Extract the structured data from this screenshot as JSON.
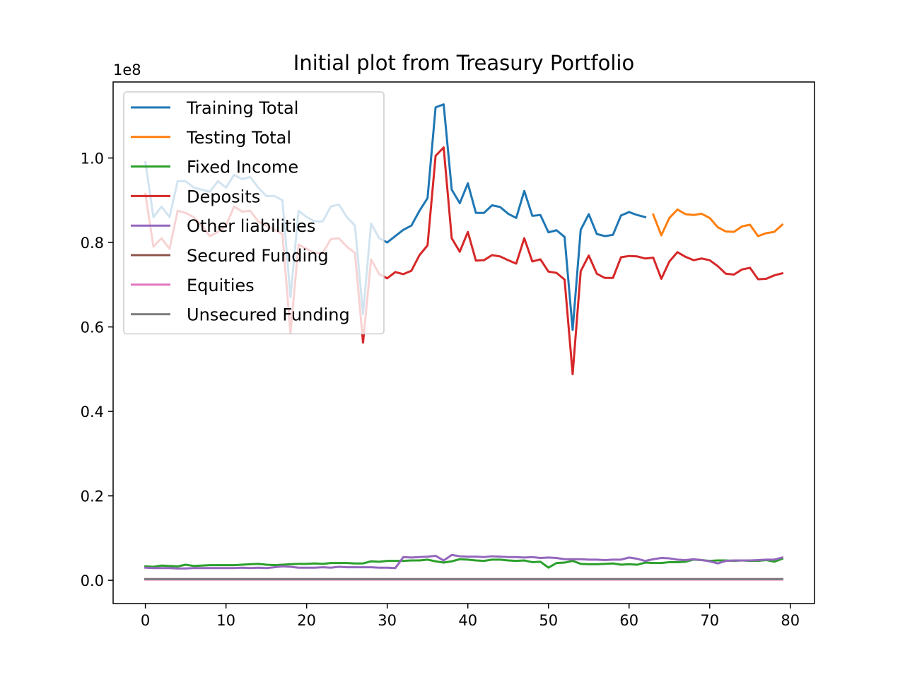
{
  "chart_data": {
    "type": "line",
    "title": "Initial plot from Treasury Portfolio",
    "xlabel": "",
    "ylabel": "",
    "y_offset_label": "1e8",
    "y_scale_factor": 100000000,
    "xlim": [
      -4,
      83
    ],
    "ylim": [
      -0.055,
      1.18
    ],
    "x_ticks": [
      0,
      10,
      20,
      30,
      40,
      50,
      60,
      70,
      80
    ],
    "y_ticks": [
      0.0,
      0.2,
      0.4,
      0.6,
      0.8,
      1.0
    ],
    "x_tick_labels": [
      "0",
      "10",
      "20",
      "30",
      "40",
      "50",
      "60",
      "70",
      "80"
    ],
    "y_tick_labels": [
      "0.0",
      "0.2",
      "0.4",
      "0.6",
      "0.8",
      "1.0"
    ],
    "grid": false,
    "legend_position": "top-left",
    "series": [
      {
        "name": "Training Total",
        "color": "#1f77b4",
        "x_start": 0,
        "values": [
          0.99,
          0.86,
          0.885,
          0.86,
          0.945,
          0.945,
          0.93,
          0.925,
          0.92,
          0.945,
          0.93,
          0.96,
          0.95,
          0.955,
          0.93,
          0.91,
          0.91,
          0.9,
          0.67,
          0.875,
          0.86,
          0.85,
          0.85,
          0.885,
          0.89,
          0.86,
          0.84,
          0.63,
          0.845,
          0.81,
          0.8,
          0.815,
          0.83,
          0.84,
          0.875,
          0.905,
          1.12,
          1.127,
          0.925,
          0.893,
          0.94,
          0.87,
          0.87,
          0.888,
          0.884,
          0.868,
          0.858,
          0.922,
          0.863,
          0.865,
          0.824,
          0.829,
          0.813,
          0.593,
          0.83,
          0.867,
          0.82,
          0.815,
          0.818,
          0.864,
          0.872,
          0.865,
          0.86
        ]
      },
      {
        "name": "Testing Total",
        "color": "#ff7f0e",
        "x_start": 63,
        "values": [
          0.866,
          0.817,
          0.858,
          0.878,
          0.867,
          0.865,
          0.868,
          0.858,
          0.836,
          0.826,
          0.825,
          0.838,
          0.842,
          0.815,
          0.822,
          0.825,
          0.842
        ]
      },
      {
        "name": "Fixed Income",
        "color": "#2ca02c",
        "x_start": 0,
        "values": [
          0.033,
          0.032,
          0.035,
          0.034,
          0.033,
          0.037,
          0.034,
          0.035,
          0.036,
          0.036,
          0.036,
          0.036,
          0.037,
          0.038,
          0.039,
          0.037,
          0.036,
          0.037,
          0.038,
          0.039,
          0.039,
          0.04,
          0.039,
          0.041,
          0.041,
          0.041,
          0.04,
          0.04,
          0.045,
          0.044,
          0.046,
          0.046,
          0.046,
          0.047,
          0.047,
          0.049,
          0.045,
          0.042,
          0.045,
          0.05,
          0.049,
          0.047,
          0.046,
          0.049,
          0.049,
          0.047,
          0.046,
          0.047,
          0.043,
          0.044,
          0.03,
          0.041,
          0.042,
          0.046,
          0.039,
          0.038,
          0.038,
          0.039,
          0.04,
          0.037,
          0.038,
          0.037,
          0.042,
          0.041,
          0.041,
          0.043,
          0.043,
          0.044,
          0.049,
          0.048,
          0.046,
          0.047,
          0.047,
          0.046,
          0.047,
          0.046,
          0.046,
          0.048,
          0.044,
          0.051
        ]
      },
      {
        "name": "Deposits",
        "color": "#d62728",
        "x_start": 0,
        "values": [
          0.915,
          0.79,
          0.81,
          0.785,
          0.875,
          0.87,
          0.86,
          0.84,
          0.815,
          0.825,
          0.84,
          0.885,
          0.873,
          0.875,
          0.85,
          0.84,
          0.83,
          0.82,
          0.585,
          0.795,
          0.785,
          0.775,
          0.775,
          0.808,
          0.81,
          0.79,
          0.775,
          0.563,
          0.76,
          0.725,
          0.715,
          0.73,
          0.725,
          0.733,
          0.77,
          0.793,
          1.005,
          1.025,
          0.81,
          0.778,
          0.825,
          0.757,
          0.758,
          0.77,
          0.767,
          0.758,
          0.75,
          0.81,
          0.755,
          0.76,
          0.731,
          0.728,
          0.712,
          0.488,
          0.732,
          0.769,
          0.726,
          0.716,
          0.716,
          0.765,
          0.768,
          0.767,
          0.762,
          0.764,
          0.714,
          0.755,
          0.777,
          0.766,
          0.758,
          0.762,
          0.758,
          0.744,
          0.726,
          0.724,
          0.736,
          0.74,
          0.713,
          0.714,
          0.722,
          0.727
        ]
      },
      {
        "name": "Other liabilities",
        "color": "#9467bd",
        "x_start": 0,
        "values": [
          0.03,
          0.029,
          0.029,
          0.029,
          0.028,
          0.028,
          0.029,
          0.029,
          0.029,
          0.029,
          0.029,
          0.029,
          0.03,
          0.029,
          0.03,
          0.029,
          0.031,
          0.033,
          0.032,
          0.03,
          0.03,
          0.03,
          0.031,
          0.03,
          0.032,
          0.031,
          0.031,
          0.031,
          0.031,
          0.03,
          0.03,
          0.029,
          0.055,
          0.054,
          0.055,
          0.056,
          0.058,
          0.047,
          0.06,
          0.057,
          0.056,
          0.056,
          0.055,
          0.057,
          0.056,
          0.055,
          0.055,
          0.054,
          0.055,
          0.053,
          0.054,
          0.053,
          0.05,
          0.05,
          0.05,
          0.049,
          0.049,
          0.048,
          0.049,
          0.049,
          0.054,
          0.051,
          0.046,
          0.05,
          0.053,
          0.052,
          0.049,
          0.048,
          0.05,
          0.048,
          0.045,
          0.04,
          0.046,
          0.047,
          0.047,
          0.047,
          0.048,
          0.049,
          0.049,
          0.054
        ]
      },
      {
        "name": "Secured Funding",
        "color": "#8c564b",
        "x_start": 0,
        "values": [
          0.003,
          0.003,
          0.003,
          0.003,
          0.003,
          0.003,
          0.003,
          0.003,
          0.003,
          0.003,
          0.003,
          0.003,
          0.003,
          0.003,
          0.003,
          0.003,
          0.003,
          0.003,
          0.003,
          0.003,
          0.003,
          0.003,
          0.003,
          0.003,
          0.003,
          0.003,
          0.003,
          0.003,
          0.003,
          0.003,
          0.003,
          0.003,
          0.003,
          0.003,
          0.003,
          0.003,
          0.003,
          0.003,
          0.003,
          0.003,
          0.003,
          0.003,
          0.003,
          0.003,
          0.003,
          0.003,
          0.003,
          0.003,
          0.003,
          0.003,
          0.003,
          0.003,
          0.003,
          0.003,
          0.003,
          0.003,
          0.003,
          0.003,
          0.003,
          0.003,
          0.003,
          0.003,
          0.003,
          0.003,
          0.003,
          0.003,
          0.003,
          0.003,
          0.003,
          0.003,
          0.003,
          0.003,
          0.003,
          0.003,
          0.003,
          0.003,
          0.003,
          0.003,
          0.003,
          0.003
        ]
      },
      {
        "name": "Equities",
        "color": "#e377c2",
        "x_start": 0,
        "values": [
          0.002,
          0.002,
          0.002,
          0.002,
          0.002,
          0.002,
          0.002,
          0.002,
          0.002,
          0.002,
          0.002,
          0.002,
          0.002,
          0.002,
          0.002,
          0.002,
          0.002,
          0.002,
          0.002,
          0.002,
          0.002,
          0.002,
          0.002,
          0.002,
          0.002,
          0.002,
          0.002,
          0.002,
          0.002,
          0.002,
          0.002,
          0.002,
          0.002,
          0.002,
          0.002,
          0.002,
          0.002,
          0.002,
          0.002,
          0.002,
          0.002,
          0.002,
          0.002,
          0.002,
          0.002,
          0.002,
          0.002,
          0.002,
          0.002,
          0.002,
          0.002,
          0.002,
          0.002,
          0.002,
          0.002,
          0.002,
          0.002,
          0.002,
          0.002,
          0.002,
          0.002,
          0.002,
          0.002,
          0.002,
          0.002,
          0.002,
          0.002,
          0.002,
          0.002,
          0.002,
          0.002,
          0.002,
          0.002,
          0.002,
          0.002,
          0.002,
          0.002,
          0.002,
          0.002,
          0.002
        ]
      },
      {
        "name": "Unsecured Funding",
        "color": "#7f7f7f",
        "x_start": 0,
        "values": [
          0.003,
          0.003,
          0.003,
          0.003,
          0.003,
          0.003,
          0.003,
          0.003,
          0.003,
          0.003,
          0.003,
          0.003,
          0.003,
          0.003,
          0.003,
          0.003,
          0.003,
          0.003,
          0.003,
          0.003,
          0.003,
          0.003,
          0.003,
          0.003,
          0.003,
          0.003,
          0.003,
          0.003,
          0.003,
          0.003,
          0.003,
          0.003,
          0.003,
          0.003,
          0.003,
          0.003,
          0.003,
          0.003,
          0.003,
          0.003,
          0.003,
          0.003,
          0.003,
          0.003,
          0.003,
          0.003,
          0.003,
          0.003,
          0.003,
          0.003,
          0.003,
          0.003,
          0.003,
          0.003,
          0.003,
          0.003,
          0.003,
          0.003,
          0.003,
          0.003,
          0.003,
          0.003,
          0.003,
          0.003,
          0.003,
          0.003,
          0.003,
          0.003,
          0.003,
          0.003,
          0.003,
          0.003,
          0.003,
          0.003,
          0.003,
          0.003,
          0.003,
          0.003,
          0.003,
          0.003
        ]
      }
    ]
  }
}
